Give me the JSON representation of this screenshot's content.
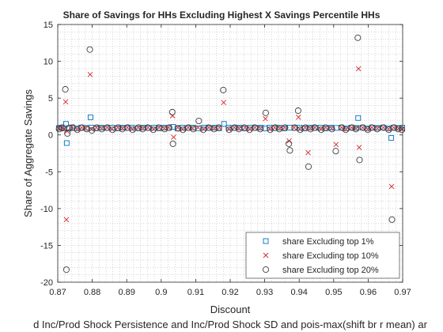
{
  "chart_data": {
    "type": "scatter",
    "title": "Share of Savings for HHs Excluding Highest X Savings Percentile HHs",
    "xlabel": "Discount",
    "ylabel": "Share of Aggregate Savings",
    "bottom_caption": "d Inc/Prod Shock Persistence and Inc/Prod Shock SD and pois-max(shift br r mean) ar",
    "xlim": [
      0.87,
      0.97
    ],
    "ylim": [
      -20,
      15
    ],
    "xticks": [
      0.87,
      0.88,
      0.89,
      0.9,
      0.91,
      0.92,
      0.93,
      0.94,
      0.95,
      0.96,
      0.97
    ],
    "xtick_labels": [
      "0.87",
      "0.88",
      "0.89",
      "0.9",
      "0.91",
      "0.92",
      "0.93",
      "0.94",
      "0.95",
      "0.96",
      "0.97"
    ],
    "yticks": [
      -20,
      -15,
      -10,
      -5,
      0,
      5,
      10,
      15
    ],
    "ytick_labels": [
      "-20",
      "-15",
      "-10",
      "-5",
      "0",
      "5",
      "10",
      "15"
    ],
    "grid": "minor-dotted",
    "legend_position": "bottom-right",
    "colors": {
      "top1": "#0072bd",
      "top10": "#d62728",
      "top20": "#404040"
    },
    "series": [
      {
        "name": "share Excluding top 1%",
        "marker": "square",
        "color": "#0072bd",
        "points": [
          [
            0.8703,
            0.95
          ],
          [
            0.8711,
            1.0
          ],
          [
            0.8718,
            0.9
          ],
          [
            0.8724,
            1.5
          ],
          [
            0.8726,
            -1.1
          ],
          [
            0.8733,
            0.95
          ],
          [
            0.8742,
            1.0
          ],
          [
            0.8755,
            0.9
          ],
          [
            0.8768,
            1.0
          ],
          [
            0.8783,
            0.95
          ],
          [
            0.8795,
            2.4
          ],
          [
            0.8797,
            1.0
          ],
          [
            0.8811,
            0.9
          ],
          [
            0.8826,
            1.0
          ],
          [
            0.8842,
            0.95
          ],
          [
            0.8858,
            1.0
          ],
          [
            0.8873,
            0.9
          ],
          [
            0.8889,
            1.0
          ],
          [
            0.8901,
            0.95
          ],
          [
            0.8915,
            1.0
          ],
          [
            0.8932,
            0.9
          ],
          [
            0.8948,
            1.0
          ],
          [
            0.8963,
            0.95
          ],
          [
            0.8979,
            1.0
          ],
          [
            0.8995,
            0.9
          ],
          [
            0.9008,
            1.0
          ],
          [
            0.9022,
            0.95
          ],
          [
            0.9035,
            1.1
          ],
          [
            0.9047,
            0.9
          ],
          [
            0.9061,
            1.0
          ],
          [
            0.9077,
            0.95
          ],
          [
            0.9092,
            1.0
          ],
          [
            0.9108,
            0.9
          ],
          [
            0.9124,
            1.0
          ],
          [
            0.9139,
            0.95
          ],
          [
            0.9155,
            1.0
          ],
          [
            0.9168,
            0.9
          ],
          [
            0.9182,
            1.5
          ],
          [
            0.9195,
            1.0
          ],
          [
            0.9211,
            0.95
          ],
          [
            0.9227,
            1.0
          ],
          [
            0.9242,
            0.9
          ],
          [
            0.9258,
            1.0
          ],
          [
            0.9273,
            0.95
          ],
          [
            0.9289,
            1.0
          ],
          [
            0.9301,
            0.9
          ],
          [
            0.9314,
            1.0
          ],
          [
            0.9328,
            0.95
          ],
          [
            0.9343,
            1.0
          ],
          [
            0.9357,
            0.9
          ],
          [
            0.9372,
            1.0
          ],
          [
            0.9386,
            0.95
          ],
          [
            0.9401,
            1.0
          ],
          [
            0.9416,
            0.9
          ],
          [
            0.9431,
            1.0
          ],
          [
            0.9447,
            0.95
          ],
          [
            0.9462,
            1.0
          ],
          [
            0.9478,
            0.9
          ],
          [
            0.9493,
            1.0
          ],
          [
            0.9508,
            0.95
          ],
          [
            0.9522,
            1.0
          ],
          [
            0.9537,
            0.9
          ],
          [
            0.9551,
            1.0
          ],
          [
            0.9566,
            0.95
          ],
          [
            0.9571,
            2.3
          ],
          [
            0.9583,
            1.0
          ],
          [
            0.9597,
            0.9
          ],
          [
            0.9612,
            1.0
          ],
          [
            0.9628,
            0.95
          ],
          [
            0.9643,
            1.0
          ],
          [
            0.9658,
            0.9
          ],
          [
            0.9667,
            -0.4
          ],
          [
            0.9673,
            1.0
          ],
          [
            0.9689,
            0.95
          ],
          [
            0.9699,
            1.0
          ]
        ]
      },
      {
        "name": "share Excluding top 10%",
        "marker": "x",
        "color": "#d62728",
        "points": [
          [
            0.8703,
            0.9
          ],
          [
            0.8712,
            1.0
          ],
          [
            0.8719,
            0.8
          ],
          [
            0.8723,
            4.5
          ],
          [
            0.8725,
            -11.5
          ],
          [
            0.8727,
            0.5
          ],
          [
            0.8741,
            1.1
          ],
          [
            0.8756,
            0.8
          ],
          [
            0.8769,
            1.0
          ],
          [
            0.8781,
            0.9
          ],
          [
            0.8794,
            8.2
          ],
          [
            0.8798,
            0.8
          ],
          [
            0.8812,
            1.0
          ],
          [
            0.8827,
            0.9
          ],
          [
            0.8843,
            1.0
          ],
          [
            0.8857,
            0.8
          ],
          [
            0.8874,
            1.0
          ],
          [
            0.8888,
            0.9
          ],
          [
            0.8902,
            1.0
          ],
          [
            0.8916,
            0.8
          ],
          [
            0.8933,
            1.0
          ],
          [
            0.8947,
            0.9
          ],
          [
            0.8962,
            1.0
          ],
          [
            0.8978,
            0.8
          ],
          [
            0.8994,
            1.0
          ],
          [
            0.9009,
            0.9
          ],
          [
            0.9021,
            1.0
          ],
          [
            0.9033,
            2.6
          ],
          [
            0.9036,
            -0.3
          ],
          [
            0.9048,
            1.0
          ],
          [
            0.9062,
            0.8
          ],
          [
            0.9078,
            1.0
          ],
          [
            0.9091,
            0.9
          ],
          [
            0.9107,
            1.0
          ],
          [
            0.9123,
            0.8
          ],
          [
            0.9138,
            1.0
          ],
          [
            0.9154,
            0.9
          ],
          [
            0.9169,
            1.0
          ],
          [
            0.9181,
            4.4
          ],
          [
            0.9196,
            0.8
          ],
          [
            0.9212,
            1.0
          ],
          [
            0.9226,
            0.9
          ],
          [
            0.9243,
            1.0
          ],
          [
            0.9257,
            0.8
          ],
          [
            0.9272,
            1.0
          ],
          [
            0.9288,
            0.9
          ],
          [
            0.9302,
            2.2
          ],
          [
            0.9315,
            0.8
          ],
          [
            0.9329,
            1.0
          ],
          [
            0.9344,
            0.9
          ],
          [
            0.9358,
            1.0
          ],
          [
            0.9371,
            -0.8
          ],
          [
            0.9385,
            1.0
          ],
          [
            0.9398,
            2.4
          ],
          [
            0.9402,
            0.8
          ],
          [
            0.9417,
            1.0
          ],
          [
            0.9426,
            -2.4
          ],
          [
            0.9432,
            0.9
          ],
          [
            0.9446,
            1.0
          ],
          [
            0.9463,
            0.8
          ],
          [
            0.9477,
            1.0
          ],
          [
            0.9494,
            0.9
          ],
          [
            0.9507,
            -1.3
          ],
          [
            0.9523,
            1.0
          ],
          [
            0.9536,
            0.8
          ],
          [
            0.9552,
            1.0
          ],
          [
            0.9565,
            0.9
          ],
          [
            0.9572,
            9.0
          ],
          [
            0.9574,
            -1.7
          ],
          [
            0.9584,
            1.0
          ],
          [
            0.9598,
            0.8
          ],
          [
            0.9611,
            1.0
          ],
          [
            0.9627,
            0.9
          ],
          [
            0.9644,
            1.0
          ],
          [
            0.9659,
            0.8
          ],
          [
            0.9668,
            -7.0
          ],
          [
            0.9674,
            1.0
          ],
          [
            0.9688,
            0.9
          ],
          [
            0.9699,
            0.8
          ]
        ]
      },
      {
        "name": "share Excluding top 20%",
        "marker": "circle",
        "color": "#404040",
        "points": [
          [
            0.8704,
            0.8
          ],
          [
            0.8713,
            1.0
          ],
          [
            0.8722,
            6.2
          ],
          [
            0.8725,
            -18.3
          ],
          [
            0.8728,
            0.2
          ],
          [
            0.8734,
            0.9
          ],
          [
            0.8743,
            1.0
          ],
          [
            0.8757,
            0.7
          ],
          [
            0.877,
            1.0
          ],
          [
            0.8784,
            0.8
          ],
          [
            0.8793,
            11.6
          ],
          [
            0.8799,
            0.6
          ],
          [
            0.8813,
            1.0
          ],
          [
            0.8828,
            0.8
          ],
          [
            0.8844,
            1.0
          ],
          [
            0.8859,
            0.7
          ],
          [
            0.8875,
            1.0
          ],
          [
            0.8887,
            0.8
          ],
          [
            0.8903,
            1.0
          ],
          [
            0.8917,
            0.7
          ],
          [
            0.8934,
            1.0
          ],
          [
            0.8946,
            0.8
          ],
          [
            0.8961,
            1.0
          ],
          [
            0.8977,
            0.7
          ],
          [
            0.8993,
            1.0
          ],
          [
            0.901,
            0.8
          ],
          [
            0.9023,
            1.0
          ],
          [
            0.9032,
            3.1
          ],
          [
            0.9034,
            -1.2
          ],
          [
            0.9049,
            0.9
          ],
          [
            0.9063,
            0.7
          ],
          [
            0.9079,
            1.0
          ],
          [
            0.9093,
            0.8
          ],
          [
            0.9109,
            1.9
          ],
          [
            0.9122,
            0.7
          ],
          [
            0.9137,
            1.0
          ],
          [
            0.9153,
            0.8
          ],
          [
            0.9167,
            1.0
          ],
          [
            0.918,
            6.1
          ],
          [
            0.9197,
            0.7
          ],
          [
            0.9213,
            1.0
          ],
          [
            0.9225,
            0.8
          ],
          [
            0.9241,
            1.0
          ],
          [
            0.9256,
            0.7
          ],
          [
            0.9271,
            1.0
          ],
          [
            0.9287,
            0.8
          ],
          [
            0.9303,
            3.0
          ],
          [
            0.9316,
            0.7
          ],
          [
            0.933,
            1.0
          ],
          [
            0.9342,
            0.8
          ],
          [
            0.9359,
            1.0
          ],
          [
            0.937,
            -1.2
          ],
          [
            0.9373,
            -2.1
          ],
          [
            0.9387,
            1.0
          ],
          [
            0.9397,
            3.3
          ],
          [
            0.9403,
            0.7
          ],
          [
            0.9418,
            1.0
          ],
          [
            0.9427,
            -4.3
          ],
          [
            0.9433,
            0.8
          ],
          [
            0.9445,
            1.0
          ],
          [
            0.9464,
            0.7
          ],
          [
            0.9476,
            1.0
          ],
          [
            0.9495,
            0.8
          ],
          [
            0.9506,
            -2.2
          ],
          [
            0.9524,
            1.0
          ],
          [
            0.9535,
            0.7
          ],
          [
            0.9553,
            1.0
          ],
          [
            0.9564,
            0.8
          ],
          [
            0.957,
            13.2
          ],
          [
            0.9575,
            -3.4
          ],
          [
            0.9585,
            1.0
          ],
          [
            0.9599,
            0.7
          ],
          [
            0.961,
            1.0
          ],
          [
            0.9626,
            0.8
          ],
          [
            0.9645,
            1.0
          ],
          [
            0.966,
            0.7
          ],
          [
            0.9669,
            -11.5
          ],
          [
            0.9675,
            1.0
          ],
          [
            0.9687,
            0.8
          ],
          [
            0.9698,
            0.7
          ]
        ]
      }
    ]
  }
}
